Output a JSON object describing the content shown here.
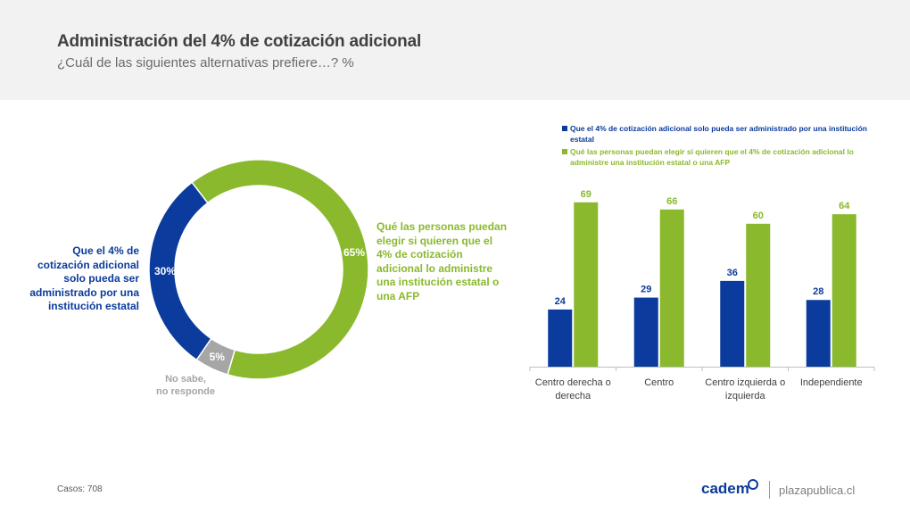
{
  "header": {
    "title": "Administración del 4% de cotización adicional",
    "subtitle": "¿Cuál de las siguientes alternativas prefiere…? %"
  },
  "colors": {
    "blue": "#0b3b9c",
    "green": "#8ab92d",
    "gray": "#a6a6a6"
  },
  "chart_data": [
    {
      "type": "pie",
      "variant": "donut",
      "slices": [
        {
          "label": "Que el 4% de cotización adicional solo pueda ser administrado por una institución estatal",
          "value": 30,
          "display": "30%",
          "color": "#0b3b9c"
        },
        {
          "label": "No sabe, no responde",
          "value": 5,
          "display": "5%",
          "color": "#a6a6a6"
        },
        {
          "label": "Qué las personas puedan elegir si quieren que el 4% de cotización adicional lo administre una institución estatal o una AFP",
          "value": 65,
          "display": "65%",
          "color": "#8ab92d"
        }
      ],
      "labels": {
        "blue": "Que el 4% de cotización adicional solo pueda ser administrado por una institución estatal",
        "green": "Qué las personas puedan elegir si quieren que el 4% de cotización adicional lo administre una institución estatal o una AFP",
        "gray_line1": "No sabe,",
        "gray_line2": "no responde"
      }
    },
    {
      "type": "bar",
      "categories": [
        [
          "Centro derecha o",
          "derecha"
        ],
        [
          "Centro"
        ],
        [
          "Centro izquierda o",
          "izquierda"
        ],
        [
          "Independiente"
        ]
      ],
      "series": [
        {
          "name": "Que el 4% de cotización adicional solo pueda ser administrado por una institución estatal",
          "values": [
            24,
            29,
            36,
            28
          ],
          "color": "#0b3b9c"
        },
        {
          "name": "Qué las personas puedan elegir si quieren que el 4% de cotización adicional lo administre una institución estatal o una AFP",
          "values": [
            69,
            66,
            60,
            64
          ],
          "color": "#8ab92d"
        }
      ],
      "ylim": [
        0,
        100
      ],
      "legend_position": "top"
    }
  ],
  "footer": {
    "cases": "Casos: 708",
    "brand": "cadem",
    "site": "plazapublica.cl"
  }
}
